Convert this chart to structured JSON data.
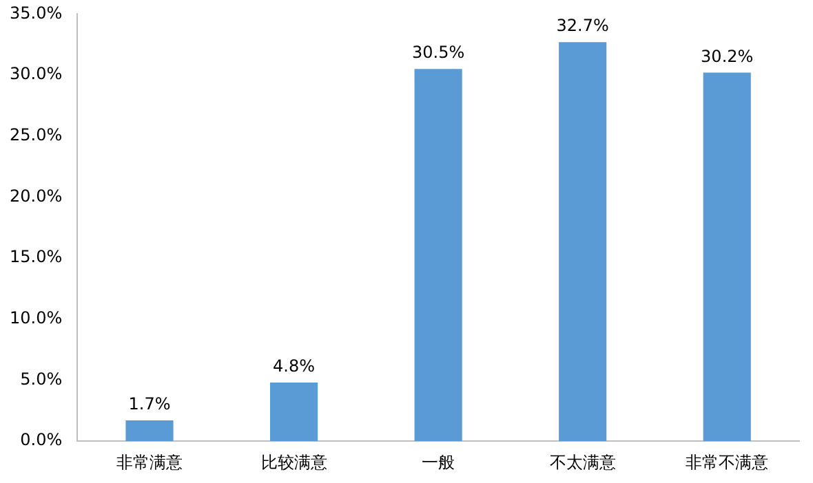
{
  "chart_data": {
    "type": "bar",
    "categories": [
      "非常满意",
      "比较满意",
      "一般",
      "不太满意",
      "非常不满意"
    ],
    "values": [
      1.7,
      4.8,
      30.5,
      32.7,
      30.2
    ],
    "value_labels": [
      "1.7%",
      "4.8%",
      "30.5%",
      "32.7%",
      "30.2%"
    ],
    "color": "#5b9bd5",
    "ylim": [
      0,
      35
    ],
    "yticks": [
      {
        "value": 0,
        "label": "0.0%"
      },
      {
        "value": 5,
        "label": "5.0%"
      },
      {
        "value": 10,
        "label": "10.0%"
      },
      {
        "value": 15,
        "label": "15.0%"
      },
      {
        "value": 20,
        "label": "20.0%"
      },
      {
        "value": 25,
        "label": "25.0%"
      },
      {
        "value": 30,
        "label": "30.0%"
      },
      {
        "value": 35,
        "label": "35.0%"
      }
    ],
    "grid": false,
    "legend": false
  }
}
